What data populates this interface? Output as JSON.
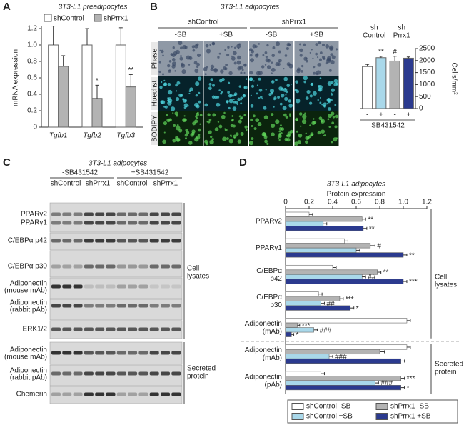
{
  "panels": [
    "A",
    "B",
    "C",
    "D"
  ],
  "images": {
    "title": "3T3-L1 adipocytes",
    "groups": [
      "shControl",
      "shPrrx1"
    ],
    "columns": [
      "-SB",
      "+SB",
      "-SB",
      "+SB"
    ],
    "rows": [
      "Phase",
      "Hoechst",
      "BODIPY"
    ]
  },
  "blot": {
    "title": "3T3-L1 adipocytes",
    "treatments": [
      "-SB431542",
      "+SB431542"
    ],
    "groups": [
      "shControl",
      "shPrrx1",
      "shControl",
      "shPrrx1"
    ],
    "rows": [
      {
        "label": "PPARγ2"
      },
      {
        "label": "PPARγ1"
      },
      {
        "label": "C/EBPα p42"
      },
      {
        "label": "C/EBPα p30"
      },
      {
        "label": "Adiponectin",
        "sublabel": "(mouse mAb)"
      },
      {
        "label": "Adiponectin",
        "sublabel": "(rabbit pAb)"
      },
      {
        "label": "ERK1/2"
      },
      {
        "label": "Adiponectin",
        "sublabel": "(mouse mAb)"
      },
      {
        "label": "Adiponectin",
        "sublabel": "(rabbit pAb)"
      },
      {
        "label": "Chemerin"
      }
    ],
    "sections": [
      "Cell\nlysates",
      "Secreted\nprotein"
    ]
  },
  "chart_data": [
    {
      "type": "bar",
      "title": "3T3-L1 preadipocytes",
      "y_label": "mRNA expression",
      "categories": [
        "Tgfb1",
        "Tgfb2",
        "Tgfb3"
      ],
      "series": [
        {
          "name": "shControl",
          "color": "#ffffff",
          "values": [
            1,
            1,
            1
          ],
          "errors": [
            0.23,
            0.2,
            0.21
          ]
        },
        {
          "name": "shPrrx1",
          "color": "#b3b3b3",
          "values": [
            0.74,
            0.35,
            0.49
          ],
          "errors": [
            0.13,
            0.16,
            0.15
          ],
          "significance": [
            null,
            "*",
            "**"
          ]
        }
      ],
      "ylim": [
        0,
        1.2
      ],
      "yticks": [
        0,
        0.2,
        0.4,
        0.6,
        0.8,
        {
          "value": 1,
          "label": "1.0"
        },
        1.2
      ]
    },
    {
      "type": "bar",
      "groups": [
        "sh\nControl",
        "sh\nPrrx1"
      ],
      "categories": [
        "-",
        "+",
        "-",
        "+"
      ],
      "x_label": "SB431542",
      "y_label": "Cells/mm²",
      "values": [
        1750,
        2120,
        1980,
        2100
      ],
      "errors": [
        90,
        60,
        200,
        50
      ],
      "significance": [
        null,
        "**",
        "#",
        null
      ],
      "colors": [
        "#ffffff",
        "#a9d8ea",
        "#b3b3b3",
        "#2b3a8f"
      ],
      "ylim": [
        0,
        2500
      ],
      "yticks": [
        0,
        500,
        1000,
        1500,
        2000,
        2500
      ],
      "y_axis": "right"
    },
    {
      "type": "hbar",
      "title": "3T3-L1 adipocytes",
      "x_label": "Protein expression",
      "categories": [
        "PPARγ2",
        "PPARγ1",
        "C/EBPα\np42",
        "C/EBPα\np30",
        "Adiponectin\n(mAb)",
        "Adiponectin\n(mAb)",
        "Adiponectin\n(pAb)"
      ],
      "series": [
        {
          "name": "shControl -SB",
          "color": "#ffffff",
          "values": [
            0.2,
            0.5,
            0.4,
            0.28,
            1.03,
            1.03,
            0.3
          ],
          "errors": [
            0.03,
            0.03,
            0.03,
            0.03,
            0.03,
            0.03,
            0.03
          ]
        },
        {
          "name": "shPrrx1 -SB",
          "color": "#b3b3b3",
          "values": [
            0.65,
            0.72,
            0.78,
            0.46,
            0.1,
            0.8,
            0.98
          ],
          "errors": [
            0.03,
            0.04,
            0.03,
            0.03,
            0.02,
            0.04,
            0.03
          ],
          "significance": [
            "**",
            "#",
            "**",
            "***",
            "***",
            null,
            "***"
          ]
        },
        {
          "name": "shControl +SB",
          "color": "#a9d8ea",
          "values": [
            0.32,
            0.6,
            0.65,
            0.3,
            0.24,
            0.37,
            0.76
          ],
          "errors": [
            0.03,
            0.03,
            0.03,
            0.03,
            0.03,
            0.03,
            0.03
          ],
          "significance": [
            null,
            null,
            "##",
            "##",
            "###",
            "###",
            "###"
          ]
        },
        {
          "name": "shPrrx1 +SB",
          "color": "#2b3a8f",
          "values": [
            0.66,
            1,
            1,
            0.55,
            0.05,
            0.98,
            0.98
          ],
          "errors": [
            0.03,
            0.03,
            0.03,
            0.03,
            0.02,
            0.03,
            0.03
          ],
          "significance": [
            "**",
            "**",
            "***",
            "*",
            "*",
            null,
            "*"
          ]
        }
      ],
      "xlim": [
        0,
        1.2
      ],
      "xticks": [
        0,
        0.2,
        0.4,
        0.6,
        0.8,
        {
          "value": 1,
          "label": "1.0"
        },
        1.2
      ],
      "groups": [
        "Cell\nlysates",
        "Secreted\nprotein"
      ],
      "legend": "bottom"
    }
  ]
}
